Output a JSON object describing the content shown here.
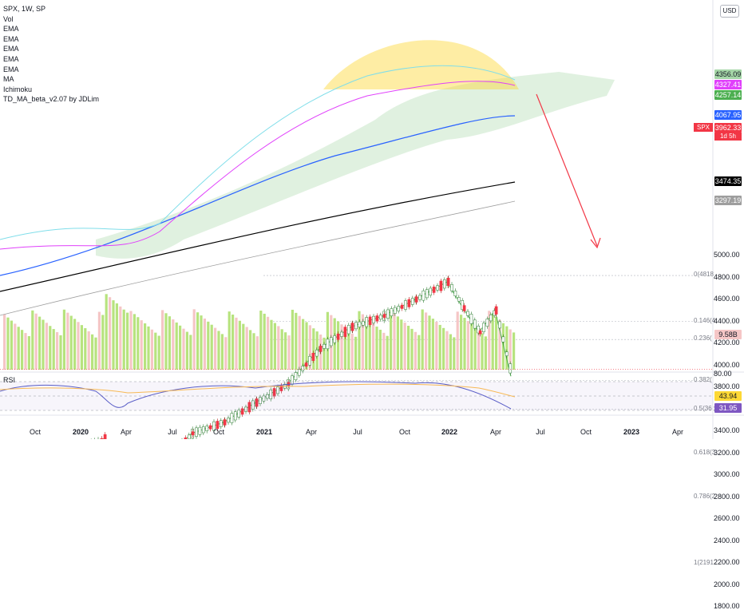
{
  "header": {
    "title": "SPX, 1W, SP",
    "indicators": [
      "Vol",
      "EMA",
      "EMA",
      "EMA",
      "EMA",
      "EMA",
      "MA",
      "Ichimoku",
      "TD_MA_beta_v2.07 by JDLim"
    ]
  },
  "currency": "USD",
  "rsi_label": "RSI",
  "spx_tag": "SPX",
  "colors": {
    "up": "#26a69a",
    "down": "#f23645",
    "ema_green": "#4caf50",
    "ema_cyan": "#80deea",
    "ema_magenta": "#e040fb",
    "ema_blue": "#2962ff",
    "ma_black": "#000000",
    "ichimoku_cloud": "#a5d6a7",
    "projection_box": "#80f0f8",
    "arrow": "#f23645",
    "dome": "#fdd835",
    "rsi": "#5b5fc7",
    "rsi_ma": "#f7b955",
    "vol_up": "#b7e37e",
    "vol_down": "#f5c6c6"
  },
  "chart_data": {
    "type": "candlestick",
    "symbol": "SPX",
    "timeframe": "1W",
    "x_ticks": [
      {
        "label": "Oct",
        "bold": false
      },
      {
        "label": "2020",
        "bold": true
      },
      {
        "label": "Apr",
        "bold": false
      },
      {
        "label": "Jul",
        "bold": false
      },
      {
        "label": "Oct",
        "bold": false
      },
      {
        "label": "2021",
        "bold": true
      },
      {
        "label": "Apr",
        "bold": false
      },
      {
        "label": "Jul",
        "bold": false
      },
      {
        "label": "Oct",
        "bold": false
      },
      {
        "label": "2022",
        "bold": true
      },
      {
        "label": "Apr",
        "bold": false
      },
      {
        "label": "Jul",
        "bold": false
      },
      {
        "label": "Oct",
        "bold": false
      },
      {
        "label": "2023",
        "bold": true
      },
      {
        "label": "Apr",
        "bold": false
      }
    ],
    "y_ticks": [
      5000,
      4800,
      4600,
      4400,
      4200,
      4000,
      3800,
      3600,
      3400,
      3200,
      3000,
      2800,
      2600,
      2400,
      2200,
      2000,
      1800
    ],
    "price_labels": [
      {
        "value": "4356.09",
        "color": "#a5d6a7",
        "text_color": "#131722"
      },
      {
        "value": "4327.41",
        "color": "#e040fb",
        "text_color": "#ffffff"
      },
      {
        "value": "4257.14",
        "color": "#4caf50",
        "text_color": "#ffffff"
      },
      {
        "value": "4067.95",
        "color": "#2962ff",
        "text_color": "#ffffff"
      },
      {
        "value": "3962.33",
        "color": "#f23645",
        "text_color": "#ffffff"
      },
      {
        "value": "3474.35",
        "color": "#000000",
        "text_color": "#ffffff"
      },
      {
        "value": "3297.19",
        "color": "#9e9e9e",
        "text_color": "#ffffff"
      },
      {
        "value": "9.58B",
        "color": "#f5c6c6",
        "text_color": "#131722"
      }
    ],
    "countdown": "1d 5h",
    "fib_levels": [
      {
        "label": "0(4818",
        "price": 4818
      },
      {
        "label": "0.146(4",
        "price": 4400
      },
      {
        "label": "0.236(",
        "price": 4235
      },
      {
        "label": "0.382(",
        "price": 3860
      },
      {
        "label": "0.5(36",
        "price": 3600
      },
      {
        "label": "0.618(3",
        "price": 3200
      },
      {
        "label": "0.786(2",
        "price": 2800
      },
      {
        "label": "1(2191.",
        "price": 2191
      }
    ],
    "projection_zone": {
      "price_top": 3000,
      "price_bottom": 2760
    },
    "rsi": {
      "upper": 80.0,
      "value": "43.94",
      "ma_value": "31.95"
    }
  }
}
